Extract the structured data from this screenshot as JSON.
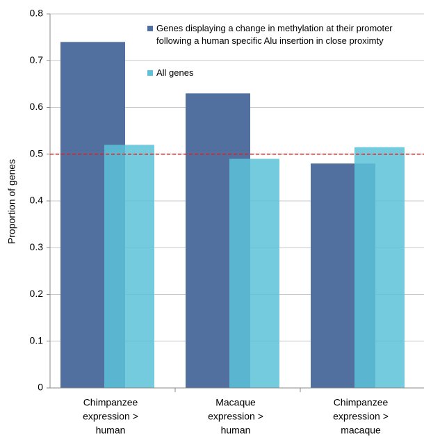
{
  "chart_data": {
    "type": "bar",
    "y_label": "Proportion of genes",
    "categories": [
      [
        "Chimpanzee",
        "expression >",
        "human"
      ],
      [
        "Macaque",
        "expression >",
        "human"
      ],
      [
        "Chimpanzee",
        "expression >",
        "macaque"
      ]
    ],
    "series": [
      {
        "name": "Genes displaying a change in methylation at their promoter following a human specific Alu insertion in close proximty",
        "color": "#52709f",
        "values": [
          0.74,
          0.63,
          0.48
        ]
      },
      {
        "name": "All genes",
        "color": "#5cc2d8",
        "values": [
          0.52,
          0.49,
          0.515
        ]
      }
    ],
    "refline": 0.5,
    "refline_color": "#e0201b",
    "ylim": [
      0,
      0.8
    ],
    "yticks": [
      0,
      0.1,
      0.2,
      0.3,
      0.4,
      0.5,
      0.6,
      0.7,
      0.8
    ],
    "grid": true
  }
}
